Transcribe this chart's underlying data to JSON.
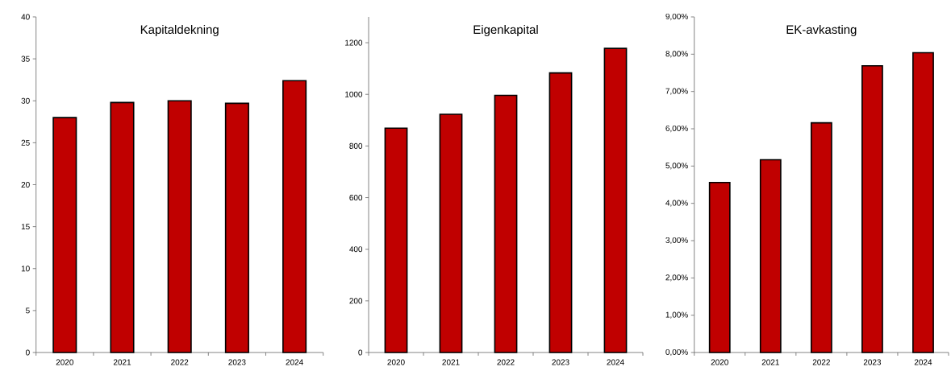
{
  "chart_data": [
    {
      "type": "bar",
      "title": "Kapitaldekning",
      "categories": [
        "2020",
        "2021",
        "2022",
        "2023",
        "2024"
      ],
      "values": [
        28,
        29.8,
        30,
        29.7,
        32.4
      ],
      "color": "#c00000",
      "ylim": [
        0,
        40
      ],
      "yticks": [
        0,
        5,
        10,
        15,
        20,
        25,
        30,
        35,
        40
      ]
    },
    {
      "type": "bar",
      "title": "Eigenkapital",
      "categories": [
        "2020",
        "2021",
        "2022",
        "2023",
        "2024"
      ],
      "values": [
        869,
        923,
        996,
        1083,
        1178
      ],
      "color": "#c00000",
      "ylim": [
        0,
        1300
      ],
      "yticks": [
        0,
        200,
        400,
        600,
        800,
        1000,
        1200
      ]
    },
    {
      "type": "bar",
      "title": "EK-avkasting",
      "categories": [
        "2020",
        "2021",
        "2022",
        "2023",
        "2024"
      ],
      "values": [
        4.56,
        5.17,
        6.16,
        7.69,
        8.04
      ],
      "color": "#c00000",
      "ylim": [
        0,
        9
      ],
      "yticks": [
        {
          "value": 0,
          "label": "0,00%"
        },
        {
          "value": 1,
          "label": "1,00%"
        },
        {
          "value": 2,
          "label": "2,00%"
        },
        {
          "value": 3,
          "label": "3,00%"
        },
        {
          "value": 4,
          "label": "4,00%"
        },
        {
          "value": 5,
          "label": "5,00%"
        },
        {
          "value": 6,
          "label": "6,00%"
        },
        {
          "value": 7,
          "label": "7,00%"
        },
        {
          "value": 8,
          "label": "8,00%"
        },
        {
          "value": 9,
          "label": "9,00%"
        }
      ]
    }
  ]
}
